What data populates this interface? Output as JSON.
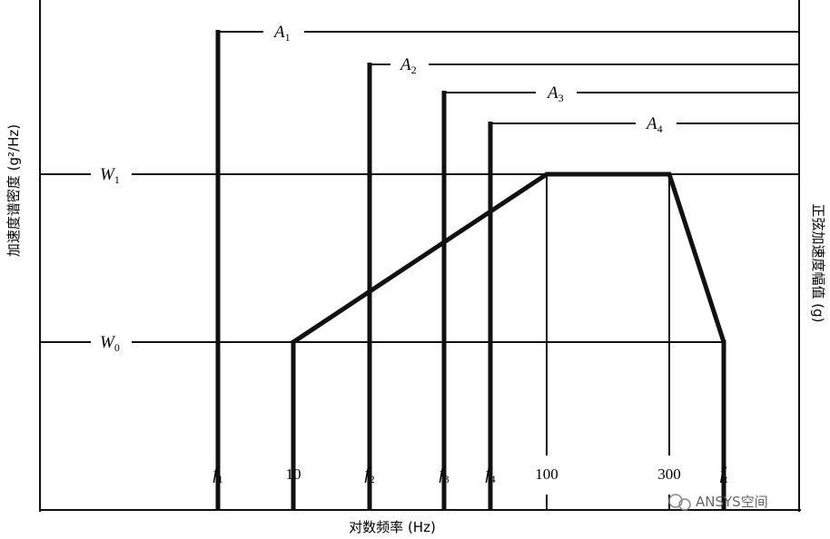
{
  "axes": {
    "x_title": "对数频率 (Hz)",
    "y_left_title": "加速度谱密度 (g²/Hz)",
    "y_right_title": "正弦加速度幅值 (g)"
  },
  "sine_levels": [
    {
      "symbol": "A",
      "sub": "1"
    },
    {
      "symbol": "A",
      "sub": "2"
    },
    {
      "symbol": "A",
      "sub": "3"
    },
    {
      "symbol": "A",
      "sub": "4"
    }
  ],
  "psd_levels": [
    {
      "symbol": "W",
      "sub": "1"
    },
    {
      "symbol": "W",
      "sub": "0"
    }
  ],
  "freq_labels": [
    {
      "symbol": "f",
      "sub": "1"
    },
    {
      "text": "10"
    },
    {
      "symbol": "f",
      "sub": "2"
    },
    {
      "symbol": "f",
      "sub": "3"
    },
    {
      "symbol": "f",
      "sub": "4"
    },
    {
      "text": "100"
    },
    {
      "text": "300"
    },
    {
      "symbol": "f",
      "sub": "t"
    }
  ],
  "watermark": "ANSYS空间"
}
